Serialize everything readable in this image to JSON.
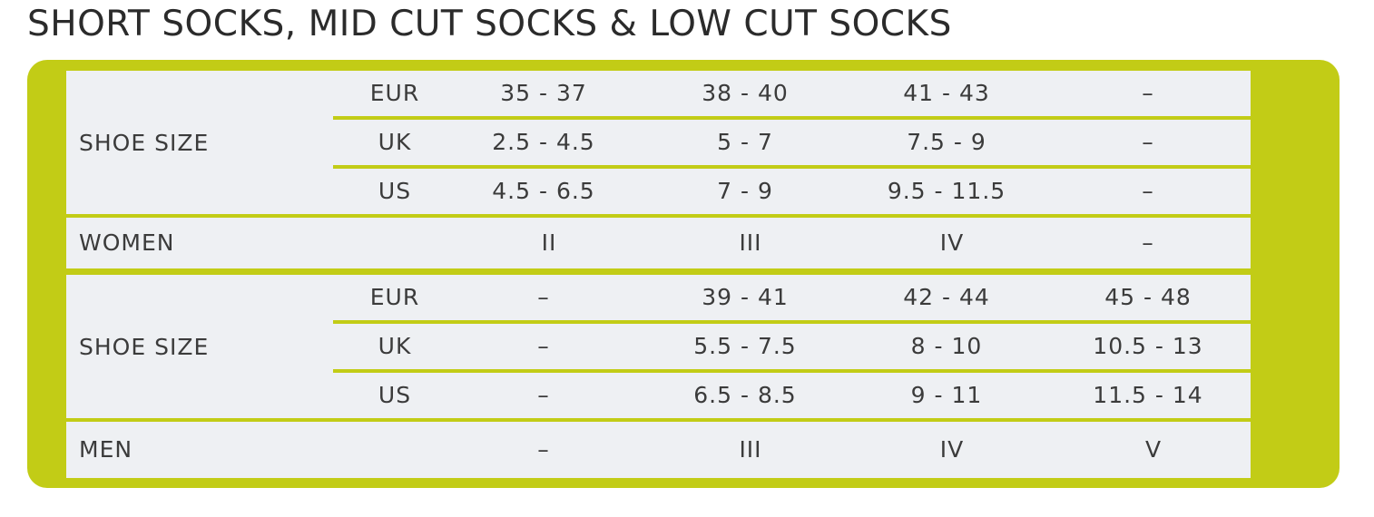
{
  "title": "SHORT SOCKS, MID CUT SOCKS & LOW CUT SOCKS",
  "colors": {
    "accent": "#c2cc16",
    "cell_background": "#eef0f3",
    "text": "#3b3b3b"
  },
  "women": {
    "shoe_size_label": "SHOE SIZE",
    "rows": [
      {
        "unit": "EUR",
        "values": [
          "35 - 37",
          "38 - 40",
          "41 - 43",
          "–"
        ]
      },
      {
        "unit": "UK",
        "values": [
          "2.5 - 4.5",
          "5 - 7",
          "7.5 - 9",
          "–"
        ]
      },
      {
        "unit": "US",
        "values": [
          "4.5 - 6.5",
          "7 - 9",
          "9.5 - 11.5",
          "–"
        ]
      }
    ],
    "gender_label": "WOMEN",
    "sizes": [
      "II",
      "III",
      "IV",
      "–"
    ]
  },
  "men": {
    "shoe_size_label": "SHOE SIZE",
    "rows": [
      {
        "unit": "EUR",
        "values": [
          "–",
          "39 - 41",
          "42 - 44",
          "45 - 48"
        ]
      },
      {
        "unit": "UK",
        "values": [
          "–",
          "5.5 - 7.5",
          "8 - 10",
          "10.5 - 13"
        ]
      },
      {
        "unit": "US",
        "values": [
          "–",
          "6.5 - 8.5",
          "9 - 11",
          "11.5 - 14"
        ]
      }
    ],
    "gender_label": "MEN",
    "sizes": [
      "–",
      "III",
      "IV",
      "V"
    ]
  }
}
